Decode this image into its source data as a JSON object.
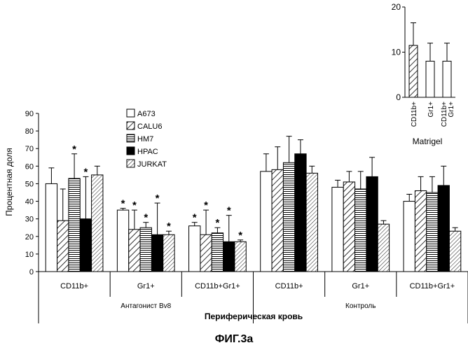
{
  "figure_caption": "ФИГ.3а",
  "chart_data": [
    {
      "type": "bar",
      "ylabel": "Процентная доля",
      "xlabel": "Периферическая кровь",
      "ylim": [
        0,
        90
      ],
      "yticks": [
        0,
        10,
        20,
        30,
        40,
        50,
        60,
        70,
        80,
        90
      ],
      "groups": [
        {
          "name": "Антагонист Bv8",
          "categories": [
            "CD11b+",
            "Gr1+",
            "CD11b+Gr1+"
          ]
        },
        {
          "name": "Контроль",
          "categories": [
            "CD11b+",
            "Gr1+",
            "CD11b+Gr1+"
          ]
        }
      ],
      "legend": {
        "position": "top-center"
      },
      "series": [
        {
          "name": "A673",
          "pattern": "open",
          "values": [
            50,
            35,
            26,
            57,
            48,
            40
          ],
          "errors": [
            9,
            1,
            2,
            10,
            4,
            4
          ],
          "stars": [
            false,
            true,
            true,
            false,
            false,
            false
          ]
        },
        {
          "name": "CALU6",
          "pattern": "hatch-diagonal",
          "values": [
            29,
            24,
            21,
            58,
            51,
            46
          ],
          "errors": [
            18,
            11,
            14,
            13,
            6,
            8
          ],
          "stars": [
            false,
            true,
            true,
            false,
            false,
            false
          ]
        },
        {
          "name": "HM7",
          "pattern": "hatch-horizontal",
          "values": [
            53,
            25,
            22,
            62,
            47,
            45
          ],
          "errors": [
            14,
            3,
            3,
            15,
            10,
            9
          ],
          "stars": [
            true,
            true,
            true,
            false,
            false,
            false
          ]
        },
        {
          "name": "HPAC",
          "pattern": "solid",
          "values": [
            30,
            21,
            17,
            67,
            54,
            49
          ],
          "errors": [
            24,
            18,
            15,
            8,
            11,
            11
          ],
          "stars": [
            true,
            true,
            true,
            false,
            false,
            false
          ]
        },
        {
          "name": "JURKAT",
          "pattern": "hatch-diagonal-fine",
          "values": [
            55,
            21,
            17,
            56,
            27,
            23
          ],
          "errors": [
            5,
            2,
            1,
            4,
            2,
            2
          ],
          "stars": [
            false,
            true,
            true,
            false,
            false,
            false
          ]
        }
      ]
    },
    {
      "type": "bar",
      "title": "Matrigel",
      "ylim": [
        0,
        20
      ],
      "yticks": [
        0,
        10,
        20
      ],
      "categories": [
        "CD11b+",
        "Gr1+",
        "CD11b+ Gr1+"
      ],
      "series": [
        {
          "patterns": [
            "hatch-diagonal",
            "open",
            "open"
          ],
          "values": [
            11.5,
            8,
            8
          ],
          "errors": [
            5,
            4,
            4
          ]
        }
      ]
    }
  ]
}
